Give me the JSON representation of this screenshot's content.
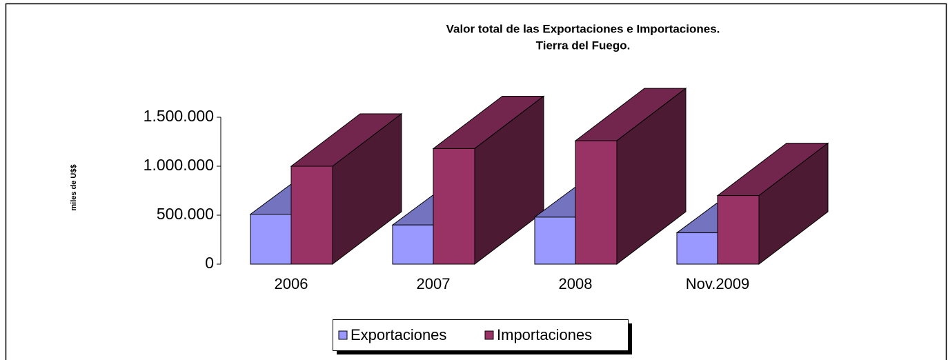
{
  "chart_data": {
    "type": "bar3d",
    "title": "Valor total de las Exportaciones e Importaciones.",
    "subtitle": "Tierra del Fuego.",
    "y_label": "miles de U$$",
    "categories": [
      "2006",
      "2007",
      "2008",
      "Nov.2009"
    ],
    "series": [
      {
        "name": "Exportaciones",
        "color": "#9999ff",
        "values": [
          510000,
          400000,
          480000,
          320000
        ]
      },
      {
        "name": "Importaciones",
        "color": "#993366",
        "values": [
          1000000,
          1180000,
          1260000,
          700000
        ]
      }
    ],
    "ylim": [
      0,
      1500000
    ],
    "yticks": [
      0,
      {
        "value": 500000,
        "label": "500.000"
      },
      {
        "value": 1000000,
        "label": "1.000.000"
      },
      {
        "value": 1500000,
        "label": "1.500.000"
      }
    ],
    "legend": "bottom"
  }
}
